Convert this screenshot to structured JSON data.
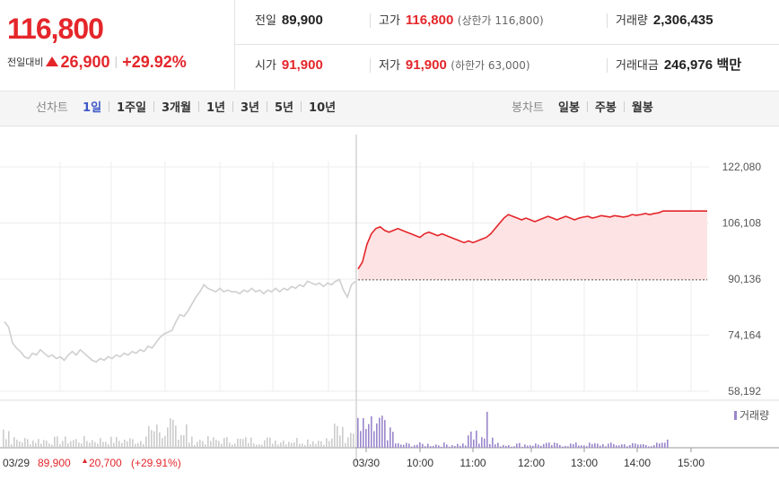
{
  "quote": {
    "price": "116,800",
    "change_label": "전일대비",
    "change_amount": "26,900",
    "change_rate": "+29.92%"
  },
  "stats": {
    "prev_close": {
      "label": "전일",
      "value": "89,900"
    },
    "high": {
      "label": "고가",
      "value": "116,800",
      "sub_label": "(상한가",
      "sub_value": "116,800)"
    },
    "volume": {
      "label": "거래량",
      "value": "2,306,435"
    },
    "open": {
      "label": "시가",
      "value": "91,900"
    },
    "low": {
      "label": "저가",
      "value": "91,900",
      "sub_label": "(하한가",
      "sub_value": "63,000)"
    },
    "amount": {
      "label": "거래대금",
      "value": "246,976",
      "unit": "백만"
    }
  },
  "line_tabs": {
    "label": "선차트",
    "items": [
      "1일",
      "1주일",
      "3개월",
      "1년",
      "3년",
      "5년",
      "10년"
    ],
    "active": "1일"
  },
  "candle_tabs": {
    "label": "봉차트",
    "items": [
      "일봉",
      "주봉",
      "월봉"
    ]
  },
  "colors": {
    "up": "#e4262b",
    "fill": "#fde3e3",
    "prev_line": "#cfcfcf",
    "volume_prev": "#cccccc",
    "volume_today": "#9a86cc",
    "active_tab": "#3d58c8"
  },
  "chart_data": {
    "type": "line",
    "y_ticks": [
      "122,080",
      "106,108",
      "90,136",
      "74,164",
      "58,192"
    ],
    "ylim": [
      58192,
      122080
    ],
    "x_ticks": [
      "03/30",
      "10:00",
      "11:00",
      "12:00",
      "13:00",
      "14:00",
      "15:00"
    ],
    "baseline_value": 89900,
    "prev_day_label": "03/29",
    "prev_day_close": "89,900",
    "prev_day_change": "20,700",
    "prev_day_rate": "(+29.91%)",
    "volume_legend": "거래량",
    "prev_day_series": [
      78000,
      76500,
      72000,
      70500,
      69500,
      68000,
      67500,
      69000,
      68500,
      70000,
      69000,
      68000,
      68500,
      67500,
      68000,
      67000,
      68500,
      69500,
      68500,
      70000,
      69000,
      68000,
      67000,
      66500,
      67500,
      67000,
      68000,
      67500,
      68500,
      68000,
      69000,
      68500,
      69500,
      69000,
      70000,
      69500,
      71000,
      70500,
      72000,
      73500,
      74500,
      75000,
      75500,
      78000,
      80000,
      79500,
      81000,
      83000,
      85000,
      86500,
      88500,
      87500,
      87000,
      86500,
      87500,
      86500,
      87000,
      86500,
      86500,
      86000,
      87000,
      86500,
      87500,
      86500,
      87000,
      86000,
      87000,
      86500,
      87500,
      86500,
      87500,
      87000,
      88000,
      87500,
      88500,
      88000,
      89500,
      89000,
      88500,
      89000,
      88000,
      89000,
      88500,
      89500,
      90000,
      87000,
      85000,
      88500,
      89500
    ],
    "today_series": [
      93000,
      95000,
      100000,
      103000,
      104500,
      105000,
      104000,
      103500,
      104000,
      104500,
      104000,
      103500,
      103000,
      102500,
      102000,
      103000,
      103500,
      103000,
      102500,
      103000,
      102500,
      102000,
      101500,
      101000,
      100500,
      101000,
      100500,
      101000,
      101500,
      102000,
      103000,
      104500,
      106000,
      107500,
      108500,
      108000,
      107500,
      107000,
      107500,
      107000,
      106500,
      107000,
      107500,
      108000,
      107500,
      107000,
      107500,
      108000,
      107500,
      107000,
      107500,
      107800,
      108000,
      107500,
      107800,
      108200,
      108000,
      107800,
      108200,
      108000,
      107800,
      108000,
      108500,
      108300,
      108500,
      108800,
      108500,
      108800,
      109000,
      109500,
      109500,
      109500,
      109500,
      109500,
      109500,
      109500,
      109500,
      109500,
      109500,
      109500
    ]
  }
}
